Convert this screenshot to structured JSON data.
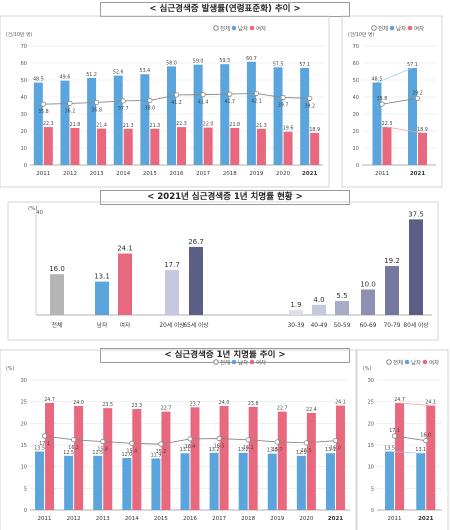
{
  "colors": {
    "male": "#5ba5dc",
    "female": "#e8687e",
    "total": "#b4b4b4",
    "total_line": "#888888",
    "grad_light": "#c6c9de",
    "grad_dark": "#5b5f86"
  },
  "legend": {
    "total": "전체",
    "male": "남자",
    "female": "여자"
  },
  "chart_data": [
    {
      "id": "incidence",
      "type": "bar",
      "title": "< 심근경색증 발생률(연령표준화) 추이 >",
      "ylabel": "(건/10만 명)",
      "ylim": [
        0,
        70
      ],
      "yticks": [
        0,
        10,
        20,
        30,
        40,
        50,
        60,
        70
      ],
      "categories": [
        "2011",
        "2012",
        "2013",
        "2014",
        "2015",
        "2016",
        "2017",
        "2018",
        "2019",
        "2020",
        "2021"
      ],
      "series": [
        {
          "name": "남자",
          "kind": "bar",
          "values": [
            48.5,
            49.6,
            51.2,
            52.6,
            53.4,
            58.0,
            59.0,
            59.3,
            60.7,
            57.5,
            57.1
          ]
        },
        {
          "name": "여자",
          "kind": "bar",
          "values": [
            22.3,
            21.8,
            21.4,
            21.3,
            21.3,
            22.3,
            22.0,
            21.8,
            21.3,
            19.6,
            18.9
          ]
        },
        {
          "name": "전체",
          "kind": "line",
          "values": [
            35.8,
            36.2,
            36.8,
            37.7,
            38.0,
            41.2,
            41.4,
            41.7,
            42.1,
            39.7,
            39.2
          ]
        }
      ],
      "side": {
        "categories": [
          "2011",
          "2021"
        ],
        "male": [
          48.5,
          57.1
        ],
        "female": [
          22.3,
          18.9
        ],
        "total": [
          35.8,
          39.2
        ]
      }
    },
    {
      "id": "fatality2021",
      "type": "bar",
      "title": "< 2021년 심근경색증 1년 치명률 현황 >",
      "ylabel": "(%)",
      "ylim": [
        0,
        40
      ],
      "yticks": [
        40
      ],
      "groups": [
        {
          "label": "전체",
          "values": [
            16.0
          ],
          "styles": [
            "total"
          ]
        },
        {
          "label": "남자",
          "values": [
            13.1
          ],
          "styles": [
            "male"
          ]
        },
        {
          "label": "여자",
          "values": [
            24.1
          ],
          "styles": [
            "female"
          ]
        },
        {
          "label": "20세 이상",
          "values": [
            17.7
          ],
          "styles": [
            "grad1"
          ]
        },
        {
          "label": "65세 이상",
          "values": [
            26.7
          ],
          "styles": [
            "grad6"
          ]
        },
        {
          "label": "30-39",
          "values": [
            1.9
          ],
          "styles": [
            "grad6"
          ]
        },
        {
          "label": "40-49",
          "values": [
            4.0
          ],
          "styles": [
            "grad6"
          ]
        },
        {
          "label": "50-59",
          "values": [
            5.5
          ],
          "styles": [
            "grad6"
          ]
        },
        {
          "label": "60-69",
          "values": [
            10.0
          ],
          "styles": [
            "grad6"
          ]
        },
        {
          "label": "70-79",
          "values": [
            19.2
          ],
          "styles": [
            "grad6"
          ]
        },
        {
          "label": "80세 이상",
          "values": [
            37.5
          ],
          "styles": [
            "grad6"
          ]
        }
      ]
    },
    {
      "id": "fatality_trend",
      "type": "bar",
      "title": "< 심근경색증 1년 치명률 추이 >",
      "ylabel": "(%)",
      "ylim": [
        0,
        30
      ],
      "yticks": [
        0,
        5,
        10,
        15,
        20,
        25,
        30
      ],
      "categories": [
        "2011",
        "2012",
        "2013",
        "2014",
        "2015",
        "2016",
        "2017",
        "2018",
        "2019",
        "2020",
        "2021"
      ],
      "series": [
        {
          "name": "남자",
          "kind": "bar",
          "values": [
            13.5,
            12.5,
            12.5,
            12.0,
            11.9,
            13.1,
            13.2,
            13.2,
            13.0,
            12.5,
            13.1
          ]
        },
        {
          "name": "여자",
          "kind": "bar",
          "values": [
            24.7,
            24.0,
            23.5,
            23.3,
            22.7,
            23.7,
            24.0,
            23.8,
            22.7,
            22.4,
            24.1
          ]
        },
        {
          "name": "전체",
          "kind": "line",
          "values": [
            17.1,
            16.2,
            15.8,
            15.4,
            15.2,
            16.4,
            16.5,
            16.2,
            15.7,
            15.5,
            16.0
          ]
        }
      ],
      "side": {
        "categories": [
          "2011",
          "2021"
        ],
        "male": [
          13.5,
          13.1
        ],
        "female": [
          24.7,
          24.1
        ],
        "total": [
          17.1,
          16.0
        ]
      }
    }
  ]
}
